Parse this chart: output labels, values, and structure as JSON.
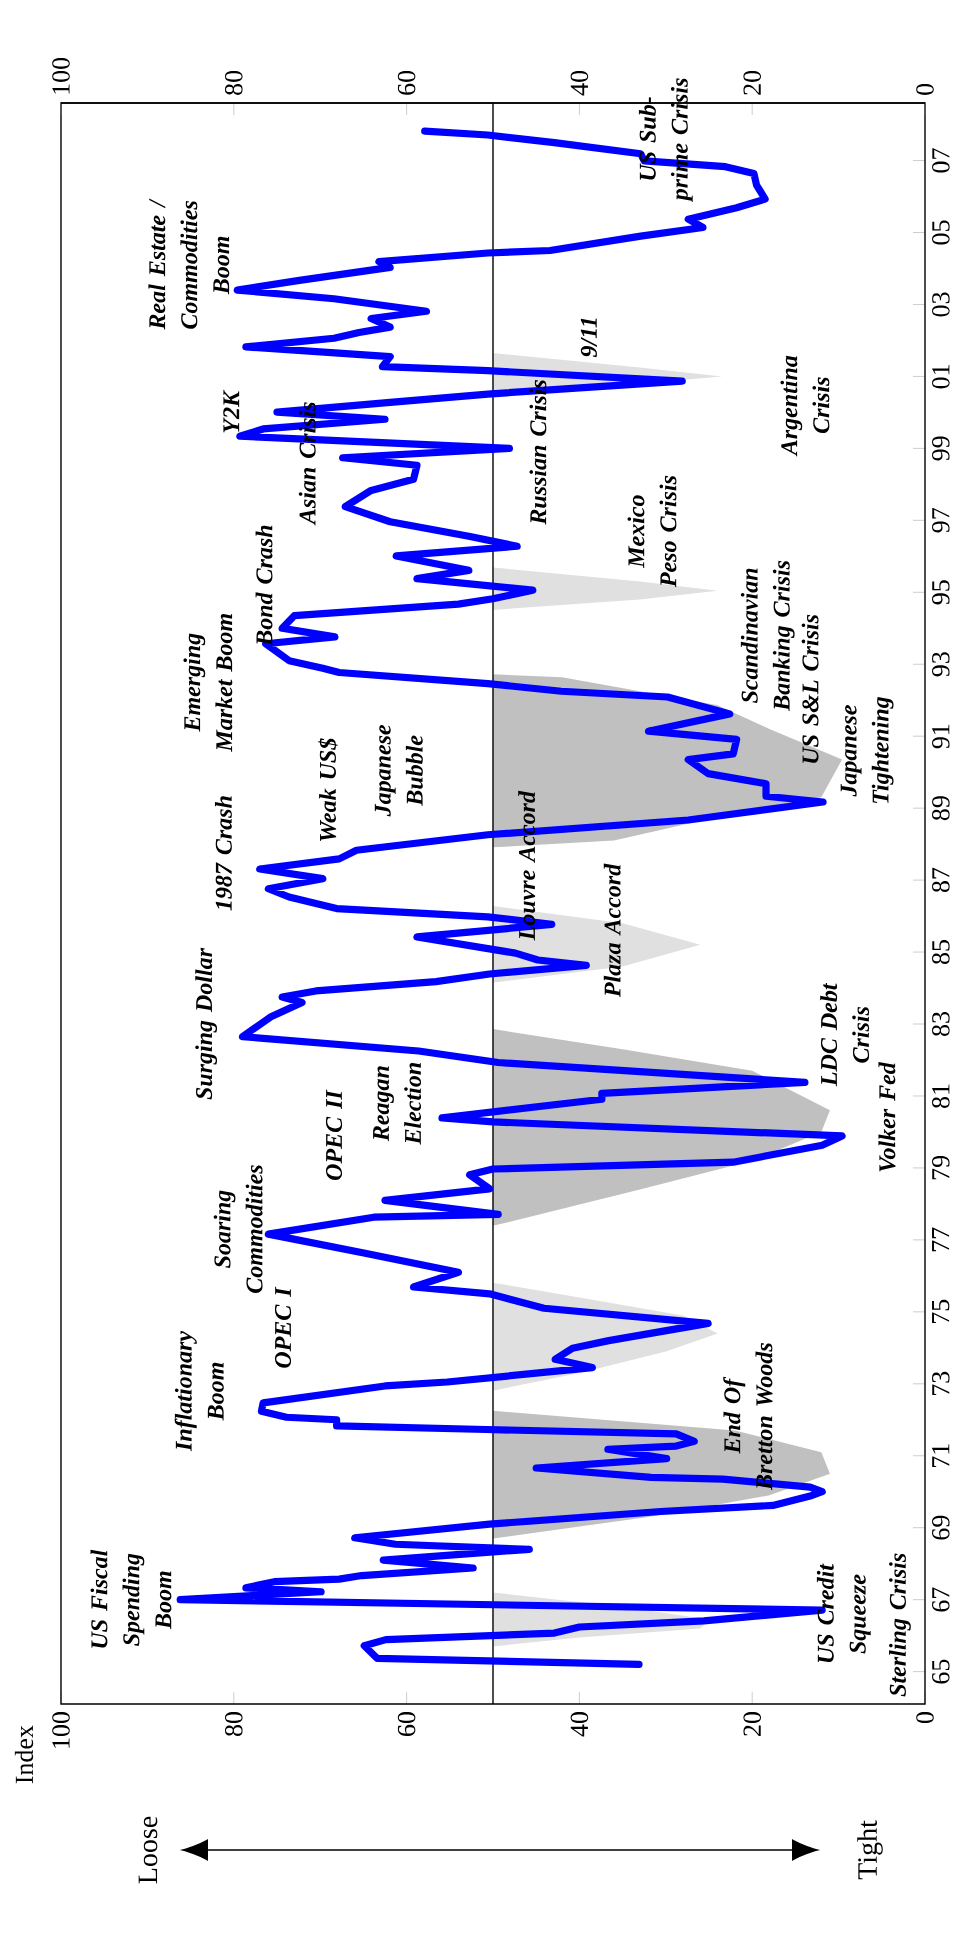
{
  "chart_data": {
    "type": "line",
    "xlim": [
      100,
      0
    ],
    "xticks": [
      0,
      20,
      40,
      60,
      80,
      100
    ],
    "x2lim": [
      100,
      0
    ],
    "x2ticks": [
      0,
      20,
      40,
      60,
      80,
      100
    ],
    "ylim": [
      1964.1,
      2008.6
    ],
    "yticks": [
      {
        "value": 1965,
        "label": "65"
      },
      {
        "value": 1967,
        "label": "67"
      },
      {
        "value": 1969,
        "label": "69"
      },
      {
        "value": 1971,
        "label": "71"
      },
      {
        "value": 1973,
        "label": "73"
      },
      {
        "value": 1975,
        "label": "75"
      },
      {
        "value": 1977,
        "label": "77"
      },
      {
        "value": 1979,
        "label": "79"
      },
      {
        "value": 1981,
        "label": "81"
      },
      {
        "value": 1983,
        "label": "83"
      },
      {
        "value": 1985,
        "label": "85"
      },
      {
        "value": 1987,
        "label": "87"
      },
      {
        "value": 1989,
        "label": "89"
      },
      {
        "value": 1991,
        "label": "91"
      },
      {
        "value": 1993,
        "label": "93"
      },
      {
        "value": 1995,
        "label": "95"
      },
      {
        "value": 1997,
        "label": "97"
      },
      {
        "value": 1999,
        "label": "99"
      },
      {
        "value": 2001,
        "label": "01"
      },
      {
        "value": 2003,
        "label": "03"
      },
      {
        "value": 2005,
        "label": "05"
      },
      {
        "value": 2007,
        "label": "07"
      }
    ],
    "marker": "none",
    "line_style": "solid",
    "ref_lines": [
      {
        "axis": "x",
        "value": 50,
        "color": "#000000"
      }
    ],
    "series": [
      {
        "type": "area",
        "color": "#e0e0e0",
        "x": [
          50,
          40,
          26,
          25,
          35,
          50
        ],
        "values": [
          1965.7,
          1965.95,
          1966.2,
          1966.45,
          1966.8,
          1967.2
        ]
      },
      {
        "type": "area",
        "color": "#c0c0c0",
        "x": [
          50,
          32,
          18,
          11,
          12,
          22,
          50
        ],
        "values": [
          1968.7,
          1969.3,
          1969.9,
          1970.5,
          1971.1,
          1971.7,
          1972.25
        ]
      },
      {
        "type": "area",
        "color": "#e0e0e0",
        "x": [
          50,
          40,
          30,
          24,
          28,
          40,
          50
        ],
        "values": [
          1972.81,
          1973.3,
          1973.9,
          1974.4,
          1974.9,
          1975.4,
          1975.81
        ]
      },
      {
        "type": "area",
        "color": "#c0c0c0",
        "x": [
          50,
          33,
          20,
          12,
          11,
          20,
          35,
          50
        ],
        "values": [
          1977.39,
          1978.4,
          1979.2,
          1980.0,
          1980.6,
          1981.7,
          1982.3,
          1982.86
        ]
      },
      {
        "type": "area",
        "color": "#e0e0e0",
        "x": [
          50,
          35,
          26,
          35,
          50
        ],
        "values": [
          1984.15,
          1984.6,
          1985.2,
          1985.8,
          1986.28
        ]
      },
      {
        "type": "area",
        "color": "#c0c0c0",
        "x": [
          50,
          36,
          25,
          12,
          9.6,
          18,
          24,
          42,
          50
        ],
        "values": [
          1987.91,
          1988.1,
          1988.7,
          1989.3,
          1990.35,
          1991.2,
          1991.86,
          1992.64,
          1992.72
        ]
      },
      {
        "type": "area",
        "color": "#e0e0e0",
        "x": [
          50,
          33,
          24,
          33,
          50
        ],
        "values": [
          1994.51,
          1994.8,
          1995.04,
          1995.3,
          1995.69
        ]
      },
      {
        "type": "area",
        "color": "#e0e0e0",
        "x": [
          50,
          33,
          23.5,
          33,
          50
        ],
        "values": [
          2000.5,
          2000.8,
          2001.0,
          2001.25,
          2001.65
        ]
      },
      {
        "color": "#0000ff",
        "x": [
          33.1,
          63.4,
          64.9,
          62.4,
          42.9,
          40.0,
          25.6,
          11.9,
          86.2,
          69.9,
          78.6,
          75.3,
          67.8,
          65.2,
          52.3,
          62.7,
          45.8,
          61.3,
          66.0,
          50.4,
          30.6,
          17.6,
          13.3,
          11.9,
          13.3,
          23.4,
          31.7,
          45.0,
          29.9,
          36.7,
          28.8,
          26.7,
          28.8,
          50.8,
          68.1,
          68.1,
          73.9,
          76.8,
          76.6,
          62.5,
          55.3,
          38.5,
          42.8,
          40.8,
          36.6,
          25.1,
          44.1,
          50.4,
          59.2,
          54.0,
          64.8,
          76.0,
          63.8,
          49.4,
          62.5,
          50.4,
          52.7,
          50.0,
          22.2,
          11.9,
          9.6,
          50.0,
          55.9,
          37.4,
          37.4,
          13.9,
          49.4,
          58.6,
          79.0,
          75.7,
          72.1,
          74.4,
          70.5,
          56.6,
          50.4,
          39.2,
          44.8,
          47.4,
          58.8,
          43.2,
          50.6,
          68.1,
          73.6,
          76.0,
          69.7,
          77.0,
          67.8,
          65.8,
          50.6,
          27.4,
          11.8,
          18.4,
          18.4,
          25.1,
          27.4,
          22.2,
          21.8,
          32.0,
          22.6,
          29.8,
          42.1,
          50.6,
          67.8,
          69.7,
          73.6,
          76.3,
          68.3,
          74.4,
          73.0,
          54.0,
          50.0,
          45.4,
          58.8,
          52.8,
          61.2,
          47.2,
          52.8,
          61.9,
          67.1,
          64.2,
          59.2,
          58.8,
          67.4,
          48.1,
          79.3,
          76.6,
          62.5,
          75.0,
          61.9,
          50.6,
          28.1,
          50.6,
          62.8,
          61.9,
          78.6,
          68.4,
          65.5,
          61.9,
          64.1,
          57.7,
          68.4,
          79.6,
          72.4,
          61.9,
          63.2,
          50.6,
          43.4,
          32.9,
          25.7,
          27.4,
          21.8,
          18.5,
          19.5,
          19.8,
          23.1,
          32.5,
          32.9,
          42.9,
          50.6,
          57.9
        ],
        "values": [
          1965.2,
          1965.37,
          1965.72,
          1965.89,
          1966.07,
          1966.24,
          1966.41,
          1966.71,
          1967.0,
          1967.22,
          1967.33,
          1967.5,
          1967.57,
          1967.67,
          1967.88,
          1968.1,
          1968.4,
          1968.54,
          1968.72,
          1969.1,
          1969.45,
          1969.62,
          1969.88,
          1970.0,
          1970.13,
          1970.35,
          1970.4,
          1970.66,
          1970.92,
          1971.18,
          1971.27,
          1971.4,
          1971.61,
          1971.73,
          1971.83,
          1972.0,
          1972.07,
          1972.24,
          1972.47,
          1972.94,
          1973.05,
          1973.45,
          1973.68,
          1973.99,
          1974.2,
          1974.68,
          1975.1,
          1975.5,
          1975.69,
          1976.1,
          1976.63,
          1977.16,
          1977.63,
          1977.71,
          1978.1,
          1978.42,
          1978.81,
          1978.97,
          1979.16,
          1979.63,
          1979.89,
          1980.28,
          1980.39,
          1980.91,
          1981.07,
          1981.38,
          1981.93,
          1982.25,
          1982.65,
          1983.2,
          1983.6,
          1983.75,
          1983.92,
          1984.18,
          1984.39,
          1984.63,
          1984.78,
          1984.97,
          1985.42,
          1985.77,
          1985.98,
          1986.21,
          1986.53,
          1986.76,
          1987.04,
          1987.31,
          1987.59,
          1987.83,
          1988.26,
          1988.67,
          1989.17,
          1989.33,
          1989.68,
          1989.96,
          1990.35,
          1990.51,
          1990.91,
          1991.14,
          1991.62,
          1992.09,
          1992.25,
          1992.46,
          1992.77,
          1992.89,
          1993.1,
          1993.57,
          1993.76,
          1994.0,
          1994.35,
          1994.67,
          1994.82,
          1995.06,
          1995.38,
          1995.61,
          1996.01,
          1996.28,
          1996.56,
          1996.96,
          1997.38,
          1997.82,
          1998.14,
          1998.53,
          1998.74,
          1999.0,
          1999.34,
          1999.54,
          1999.81,
          2000.01,
          2000.28,
          2000.51,
          2000.87,
          2001.16,
          2001.27,
          2001.55,
          2001.82,
          2002.06,
          2002.22,
          2002.37,
          2002.61,
          2002.81,
          2003.16,
          2003.4,
          2003.67,
          2004.03,
          2004.19,
          2004.43,
          2004.5,
          2004.9,
          2005.14,
          2005.37,
          2005.69,
          2005.93,
          2006.32,
          2006.64,
          2006.83,
          2006.99,
          2007.19,
          2007.5,
          2007.71,
          2007.82
        ]
      }
    ],
    "annotations": [
      "US Fiscal Spending Boom",
      "US Credit Squeeze",
      "Sterling Crisis",
      "End Of Bretton Woods",
      "Inflationary Boom",
      "OPEC I",
      "Soaring Commodities",
      "OPEC II",
      "Reagan Election",
      "Volker Fed",
      "LDC Debt Crisis",
      "Surging Dollar",
      "Plaza Accord",
      "Louvre Accord",
      "1987 Crash",
      "Weak US$",
      "Japanese Bubble",
      "Japanese Tightening",
      "US S&L Crisis",
      "Emerging Market Boom",
      "Scandinavian Banking Crisis",
      "Bond Crash",
      "Mexico Peso Crisis",
      "Asian Crisis",
      "Russian Crisis",
      "Y2K",
      "Argentina Crisis",
      "9/11",
      "Real Estate / Commodities Boom",
      "US Sub-prime Crisis",
      "Index",
      "Loose",
      "Tight"
    ]
  }
}
